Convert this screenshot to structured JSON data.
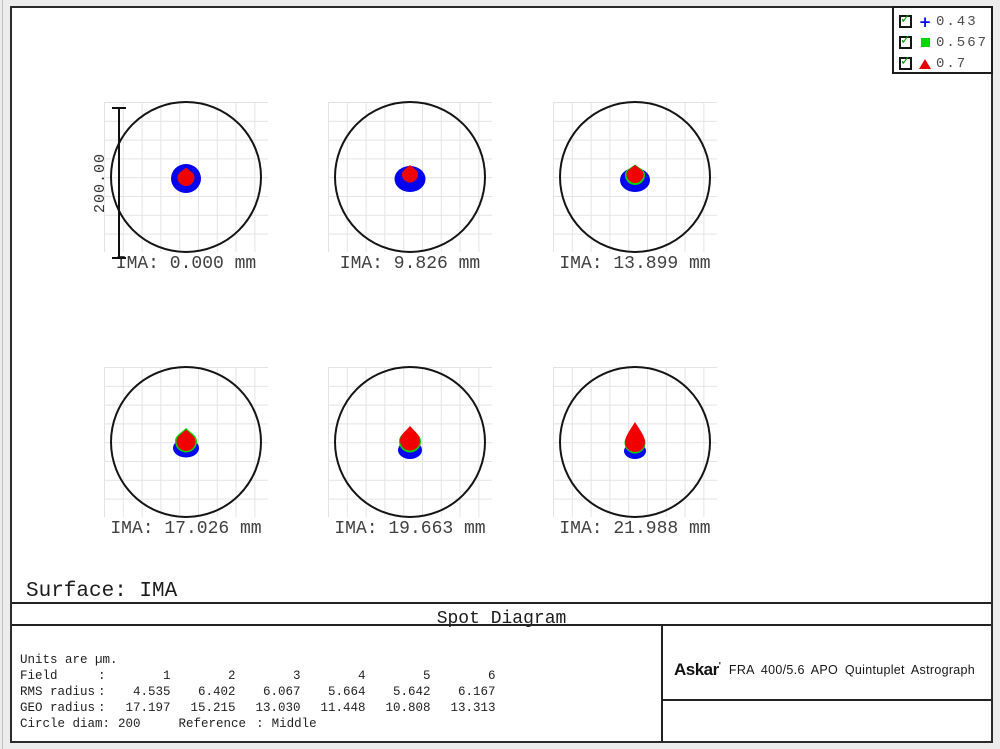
{
  "legend": {
    "items": [
      {
        "symbol": "plus",
        "color": "#0202f0",
        "label": "0.43",
        "checked": true
      },
      {
        "symbol": "square",
        "color": "#00d800",
        "label": "0.567",
        "checked": true
      },
      {
        "symbol": "triangle",
        "color": "#e60000",
        "label": "0.7",
        "checked": true
      }
    ]
  },
  "scale_bar": {
    "label": "200.00"
  },
  "subplots": [
    {
      "ima_label": "IMA: 0.000 mm"
    },
    {
      "ima_label": "IMA: 9.826 mm"
    },
    {
      "ima_label": "IMA: 13.899 mm"
    },
    {
      "ima_label": "IMA: 17.026 mm"
    },
    {
      "ima_label": "IMA: 19.663 mm"
    },
    {
      "ima_label": "IMA: 21.988 mm"
    }
  ],
  "surface_label": "Surface: IMA",
  "title": "Spot Diagram",
  "table": {
    "units_line": "Units are µm.",
    "colon": ":",
    "field_label": "Field",
    "rms_label": "RMS radius",
    "geo_label": "GEO radius",
    "fields": [
      "1",
      "2",
      "3",
      "4",
      "5",
      "6"
    ],
    "rms": [
      "4.535",
      "6.402",
      "6.067",
      "5.664",
      "5.642",
      "6.167"
    ],
    "geo": [
      "17.197",
      "15.215",
      "13.030",
      "11.448",
      "10.808",
      "13.313"
    ],
    "circle_diam_label": "Circle diam",
    "circle_diam": "200",
    "reference_label": "Reference",
    "reference": "Middle"
  },
  "branding": {
    "logo": "Askar",
    "mark": "'",
    "product": "FRA 400/5.6 APO Quintuplet Astrograph"
  },
  "colors": {
    "wavelength_043": "#0202f0",
    "wavelength_0567": "#00d800",
    "wavelength_07": "#f20000",
    "grid": "#e3e3e3"
  },
  "chart_data": {
    "type": "scatter",
    "title": "Spot Diagram",
    "surface": "IMA",
    "units": "µm",
    "wavelengths_um": [
      0.43,
      0.567,
      0.7
    ],
    "circle_diam_um": 200,
    "reference": "Middle",
    "fields": [
      {
        "field": 1,
        "ima_mm": 0.0,
        "rms_radius_um": 4.535,
        "geo_radius_um": 17.197
      },
      {
        "field": 2,
        "ima_mm": 9.826,
        "rms_radius_um": 6.402,
        "geo_radius_um": 15.215
      },
      {
        "field": 3,
        "ima_mm": 13.899,
        "rms_radius_um": 6.067,
        "geo_radius_um": 13.03
      },
      {
        "field": 4,
        "ima_mm": 17.026,
        "rms_radius_um": 5.664,
        "geo_radius_um": 11.448
      },
      {
        "field": 5,
        "ima_mm": 19.663,
        "rms_radius_um": 5.642,
        "geo_radius_um": 10.808
      },
      {
        "field": 6,
        "ima_mm": 21.988,
        "rms_radius_um": 6.167,
        "geo_radius_um": 13.313
      }
    ]
  }
}
